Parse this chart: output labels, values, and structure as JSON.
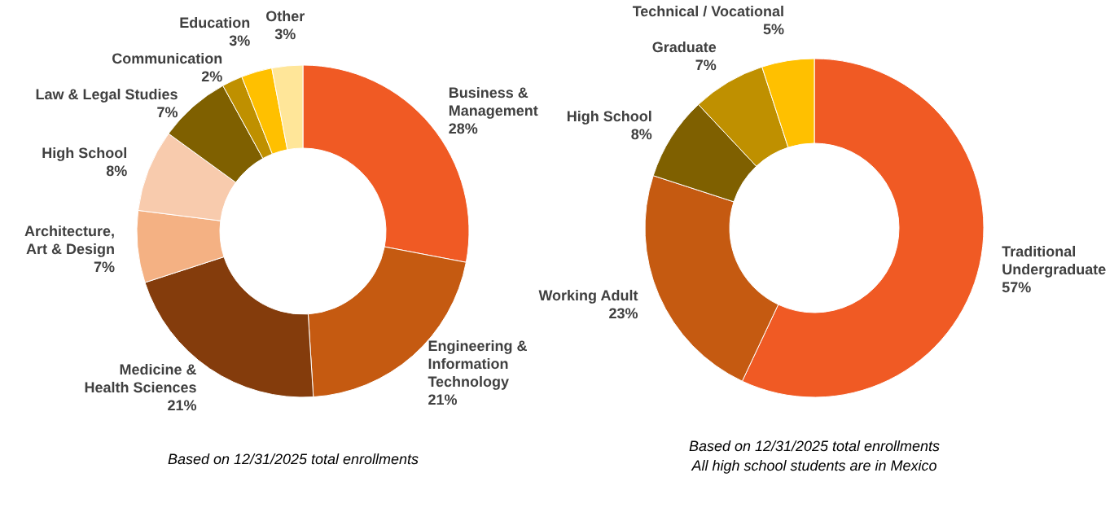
{
  "chart_data": [
    {
      "type": "donut",
      "categories": [
        "Business &\nManagement",
        "Engineering &\nInformation\nTechnology",
        "Medicine &\nHealth Sciences",
        "Architecture,\nArt & Design",
        "High School",
        "Law & Legal Studies",
        "Communication",
        "Education",
        "Other"
      ],
      "values": [
        28,
        21,
        21,
        7,
        8,
        7,
        2,
        3,
        3
      ],
      "value_labels": [
        "28%",
        "21%",
        "21%",
        "7%",
        "8%",
        "7%",
        "2%",
        "3%",
        "3%"
      ],
      "colors": [
        "#f05a24",
        "#c55a11",
        "#843c0c",
        "#f4b183",
        "#f8cbad",
        "#7f6000",
        "#bf9000",
        "#ffc000",
        "#ffe699"
      ],
      "annotations": [
        "Based on 12/31/2025 total enrollments"
      ]
    },
    {
      "type": "donut",
      "categories": [
        "Traditional\nUndergraduate",
        "Working Adult",
        "High School",
        "Graduate",
        "Technical / Vocational"
      ],
      "values": [
        57,
        23,
        8,
        7,
        5
      ],
      "value_labels": [
        "57%",
        "23%",
        "8%",
        "7%",
        "5%"
      ],
      "colors": [
        "#f05a24",
        "#c55a11",
        "#7f6000",
        "#bf9000",
        "#ffc000"
      ],
      "annotations": [
        "Based on 12/31/2025 total enrollments\nAll high school students are in Mexico"
      ]
    }
  ]
}
